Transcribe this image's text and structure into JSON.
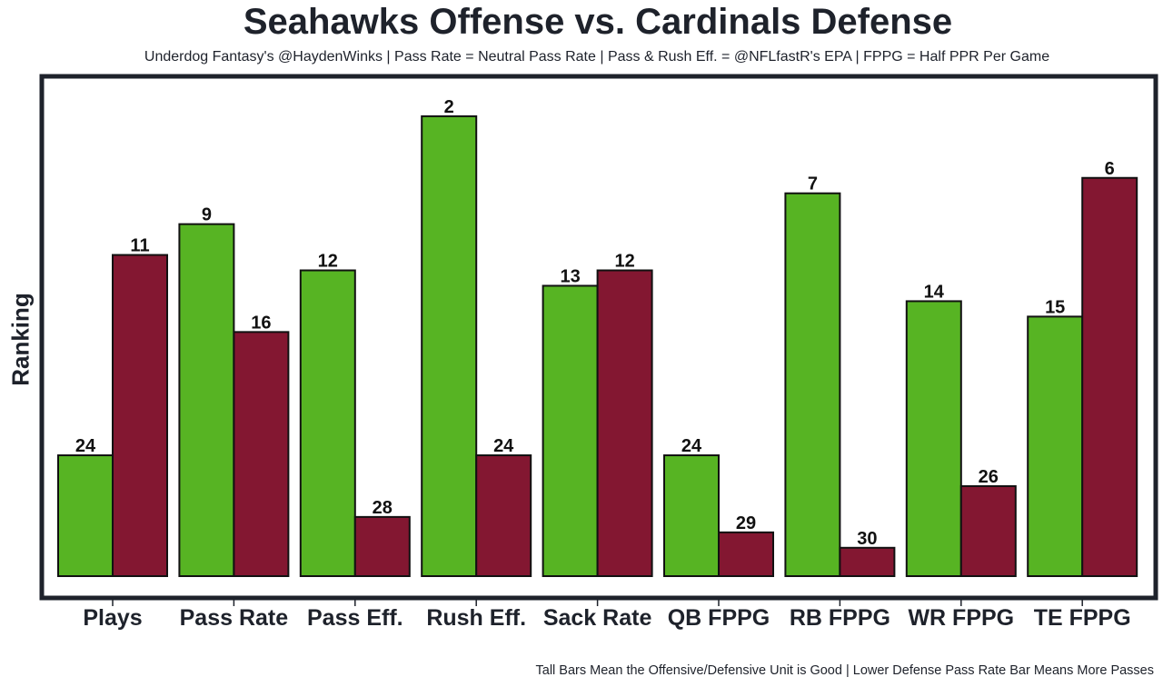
{
  "chart_data": {
    "type": "bar",
    "title": "Seahawks Offense vs. Cardinals Defense",
    "subtitle": "Underdog Fantasy's @HaydenWinks | Pass Rate = Neutral Pass Rate | Pass & Rush Eff. = @NFLfastR's EPA | FPPG = Half PPR Per Game",
    "caption": "Tall Bars Mean the Offensive/Defensive Unit is Good | Lower Defense Pass Rate Bar Means More Passes",
    "xlabel": "",
    "ylabel": "Ranking",
    "y_inverted": true,
    "ylim": [
      32,
      1
    ],
    "grid": false,
    "legend": "none",
    "categories": [
      "Plays",
      "Pass Rate",
      "Pass Eff.",
      "Rush Eff.",
      "Sack Rate",
      "QB FPPG",
      "RB FPPG",
      "WR FPPG",
      "TE FPPG"
    ],
    "series": [
      {
        "name": "Seahawks Offense",
        "color": "#57b423",
        "values": [
          24,
          9,
          12,
          2,
          13,
          24,
          7,
          14,
          15
        ]
      },
      {
        "name": "Cardinals Defense",
        "color": "#831731",
        "values": [
          11,
          16,
          28,
          24,
          12,
          29,
          30,
          26,
          6
        ]
      }
    ]
  }
}
